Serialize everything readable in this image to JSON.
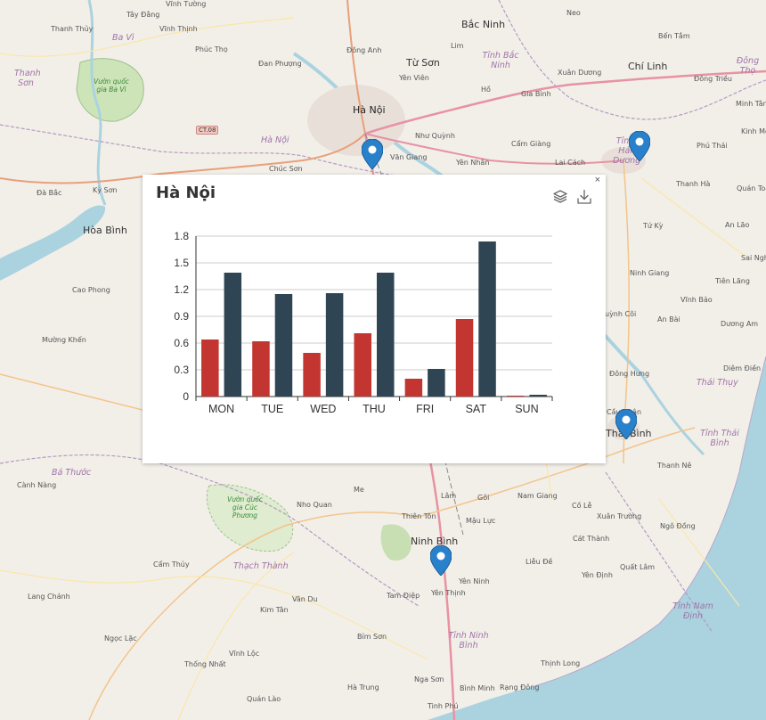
{
  "map": {
    "labels": {
      "tay_dang": "Tây Đằng",
      "vinh_tuong": "Vĩnh Tường",
      "bac_ninh": "Bắc Ninh",
      "neo": "Neo",
      "ben_tam": "Bến Tắm",
      "chi_linh": "Chí Linh",
      "thanh_thuy": "Thanh Thủy",
      "ba_vi": "Ba Vì",
      "vinh_thinh": "Vĩnh Thịnh",
      "phuc_tho": "Phúc Thọ",
      "dong_anh": "Đông Anh",
      "lim": "Lim",
      "tinh_bac_ninh": "Tỉnh Bắc Ninh",
      "xuan_duong": "Xuân Dương",
      "dong_tho": "Đông Thọ",
      "dan_phuong": "Đan Phượng",
      "tu_son": "Từ Sơn",
      "yen_vien": "Yên Viên",
      "dong_trieu": "Đông Triều",
      "thanh_son": "Thanh Sơn",
      "vuon_quoc_gia_ba_vi": "Vườn quốc gia Ba Vì",
      "ho": "Hồ",
      "gia_binh": "Gia Bình",
      "minh_tan": "Minh Tân",
      "ha_noi_city": "Hà Nội",
      "ct08": "CT.08",
      "ha_noi_prov": "Hà Nội",
      "nhu_quynh": "Như Quỳnh",
      "cam_giang": "Cẩm Giàng",
      "kinh_mon": "Kinh Môn",
      "phu_thai": "Phú Thái",
      "chuc_son": "Chúc Sơn",
      "van_giang": "Văn Giang",
      "yen_nhan": "Yên Nhân",
      "lai_cach": "Lai Cách",
      "tinh_hai_duong": "Tỉnh Hải Dương",
      "thanh_ha": "Thanh Hà",
      "quan_toan": "Quán Toan",
      "da_bac": "Đà Bắc",
      "ky_son": "Kỳ Sơn",
      "hoa_binh": "Hòa Bình",
      "tu_ky": "Tứ Kỳ",
      "an_lao": "An Lão",
      "sai_ngh": "Sai Ngh",
      "cao_phong": "Cao Phong",
      "ninh_giang": "Ninh Giang",
      "tien_lang": "Tiên Lãng",
      "vinh_bao": "Vĩnh Bảo",
      "quynh_coi": "uỳnh Côi",
      "an_bai": "An Bài",
      "duong_am": "Dương Am",
      "muong_khen": "Mường Khến",
      "diem_dien": "Diêm Điền",
      "dong_hung": "Đông Hưng",
      "thai_thuy": "Thái Thụy",
      "cau_nhan": "Cầu Nhân",
      "thai_binh": "Thái Bình",
      "tinh_thai_binh": "Tỉnh Thái Bình",
      "thanh_ne": "Thanh Nê",
      "ba_thuoc": "Bá Thước",
      "canh_nang": "Cành Nàng",
      "vuon_cuc_phuong": "Vườn quốc gia Cúc Phương",
      "nho_quan": "Nho Quan",
      "me": "Me",
      "lam": "Lâm",
      "goi": "Gôi",
      "nam_giang": "Nam Giang",
      "co_le": "Cồ Lễ",
      "thien_ton": "Thiên Tôn",
      "mau_luc": "Mậu Lực",
      "xuan_truong": "Xuân Trường",
      "ngo_dong": "Ngô Đồng",
      "ninh_binh": "Ninh Bình",
      "cat_thanh": "Cát Thành",
      "cam_thuy": "Cẩm Thủy",
      "thach_thanh": "Thạch Thành",
      "lieu_de": "Liễu Đề",
      "quat_lam": "Quất Lâm",
      "yen_ninh": "Yên Ninh",
      "yen_dinh": "Yên Định",
      "lang_chanh": "Lang Chánh",
      "van_du": "Vân Du",
      "tam_diep": "Tam Điệp",
      "yen_thinh": "Yên Thịnh",
      "tinh_nam_dinh": "Tỉnh Nam Định",
      "kim_tan": "Kim Tân",
      "ngoc_lac": "Ngọc Lặc",
      "bim_son": "Bỉm Sơn",
      "tinh_ninh_binh": "Tỉnh Ninh Bình",
      "thong_nhat": "Thống Nhất",
      "vinh_loc": "Vĩnh Lộc",
      "thinh_long": "Thịnh Long",
      "nga_son": "Nga Sơn",
      "binh_minh": "Bình Minh",
      "rang_dong": "Rạng Đông",
      "ha_trung": "Hà Trung",
      "quan_lao": "Quán Lào",
      "tinh_phu": "Tinh Phú"
    }
  },
  "popup": {
    "title": "Hà Nội",
    "close": "×",
    "tools": {
      "data_view": "stack-icon",
      "save": "download-icon"
    }
  },
  "chart_data": {
    "type": "bar",
    "categories": [
      "MON",
      "TUE",
      "WED",
      "THU",
      "FRI",
      "SAT",
      "SUN"
    ],
    "series": [
      {
        "color": "#c23531",
        "values": [
          0.64,
          0.62,
          0.49,
          0.71,
          0.2,
          0.87,
          0.01
        ]
      },
      {
        "color": "#2f4554",
        "values": [
          1.39,
          1.15,
          1.16,
          1.39,
          0.31,
          1.74,
          0.02
        ]
      }
    ],
    "yticks": [
      "0",
      "0.3",
      "0.6",
      "0.9",
      "1.2",
      "1.5",
      "1.8"
    ],
    "ylim": [
      0,
      1.8
    ],
    "grid": true,
    "title": "",
    "xlabel": "",
    "ylabel": ""
  }
}
